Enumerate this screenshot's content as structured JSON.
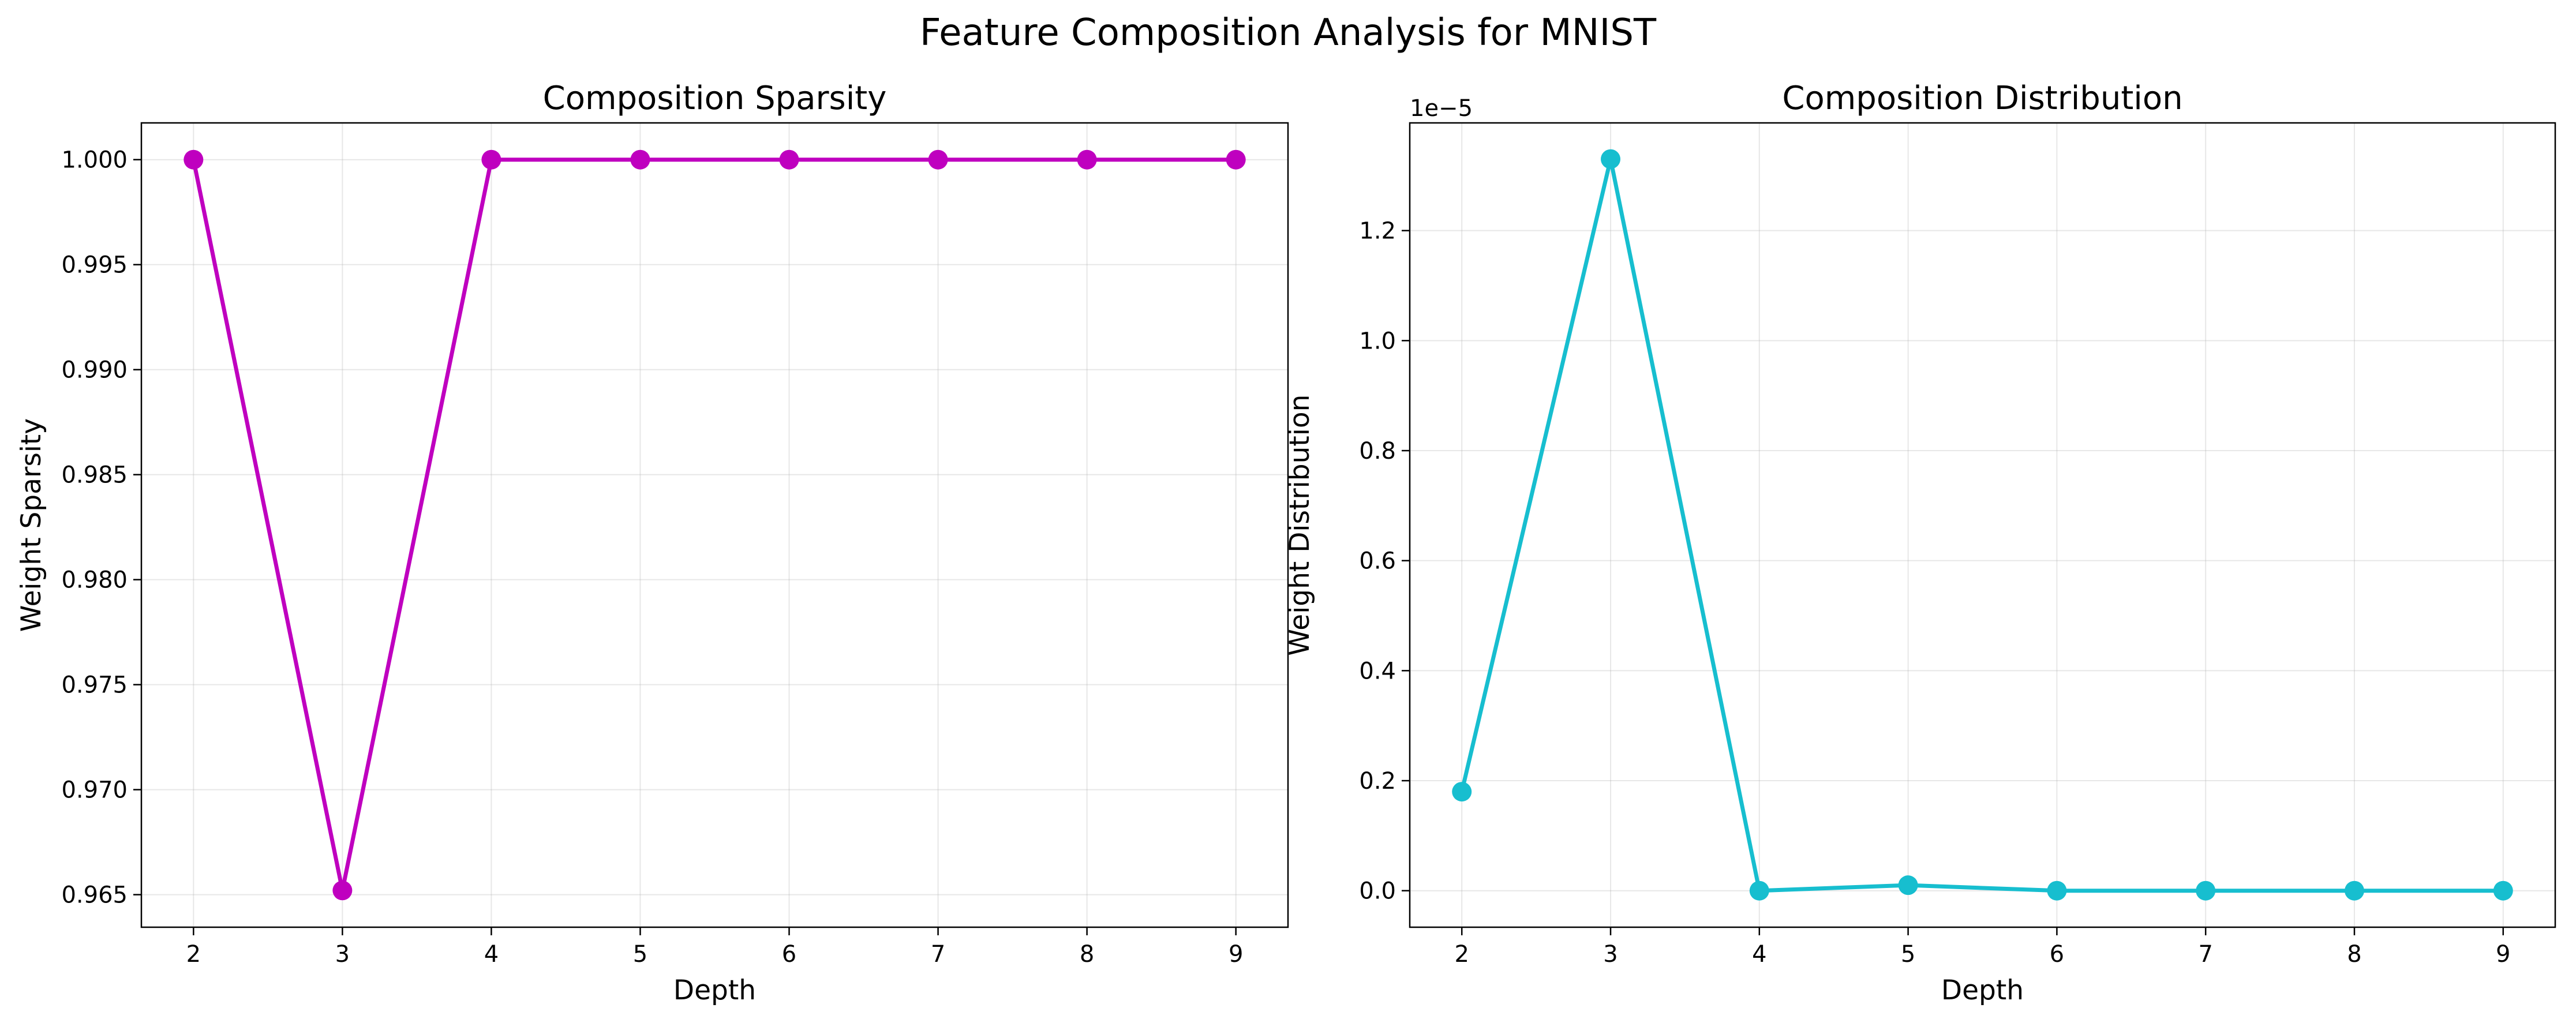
{
  "figure": {
    "title": "Feature Composition Analysis for MNIST"
  },
  "chart_data": [
    {
      "type": "line",
      "title": "Composition Sparsity",
      "xlabel": "Depth",
      "ylabel": "Weight Sparsity",
      "x": [
        2,
        3,
        4,
        5,
        6,
        7,
        8,
        9
      ],
      "xticks": [
        "2",
        "3",
        "4",
        "5",
        "6",
        "7",
        "8",
        "9"
      ],
      "xlim": [
        1.65,
        9.35
      ],
      "ylim": [
        0.96345,
        1.00175
      ],
      "yticks": [
        0.965,
        0.97,
        0.975,
        0.98,
        0.985,
        0.99,
        0.995,
        1.0
      ],
      "ytick_labels": [
        "0.965",
        "0.970",
        "0.975",
        "0.980",
        "0.985",
        "0.990",
        "0.995",
        "1.000"
      ],
      "offset_label": "",
      "grid": true,
      "series": [
        {
          "values": [
            1.0,
            0.9652,
            1.0,
            1.0,
            1.0,
            1.0,
            1.0,
            1.0
          ],
          "color": "#bf00bf"
        }
      ]
    },
    {
      "type": "line",
      "title": "Composition Distribution",
      "xlabel": "Depth",
      "ylabel": "Weight Distribution",
      "x": [
        2,
        3,
        4,
        5,
        6,
        7,
        8,
        9
      ],
      "xticks": [
        "2",
        "3",
        "4",
        "5",
        "6",
        "7",
        "8",
        "9"
      ],
      "xlim": [
        1.65,
        9.35
      ],
      "ylim": [
        -0.0664,
        1.3958
      ],
      "yticks": [
        0.0,
        0.2,
        0.4,
        0.6,
        0.8,
        1.0,
        1.2
      ],
      "ytick_labels": [
        "0.0",
        "0.2",
        "0.4",
        "0.6",
        "0.8",
        "1.0",
        "1.2"
      ],
      "offset_label": "1e−5",
      "grid": true,
      "series": [
        {
          "values": [
            0.18,
            1.33,
            0.0,
            0.01,
            0.0,
            0.0,
            0.0,
            0.0
          ],
          "color": "#17becf"
        }
      ]
    }
  ]
}
